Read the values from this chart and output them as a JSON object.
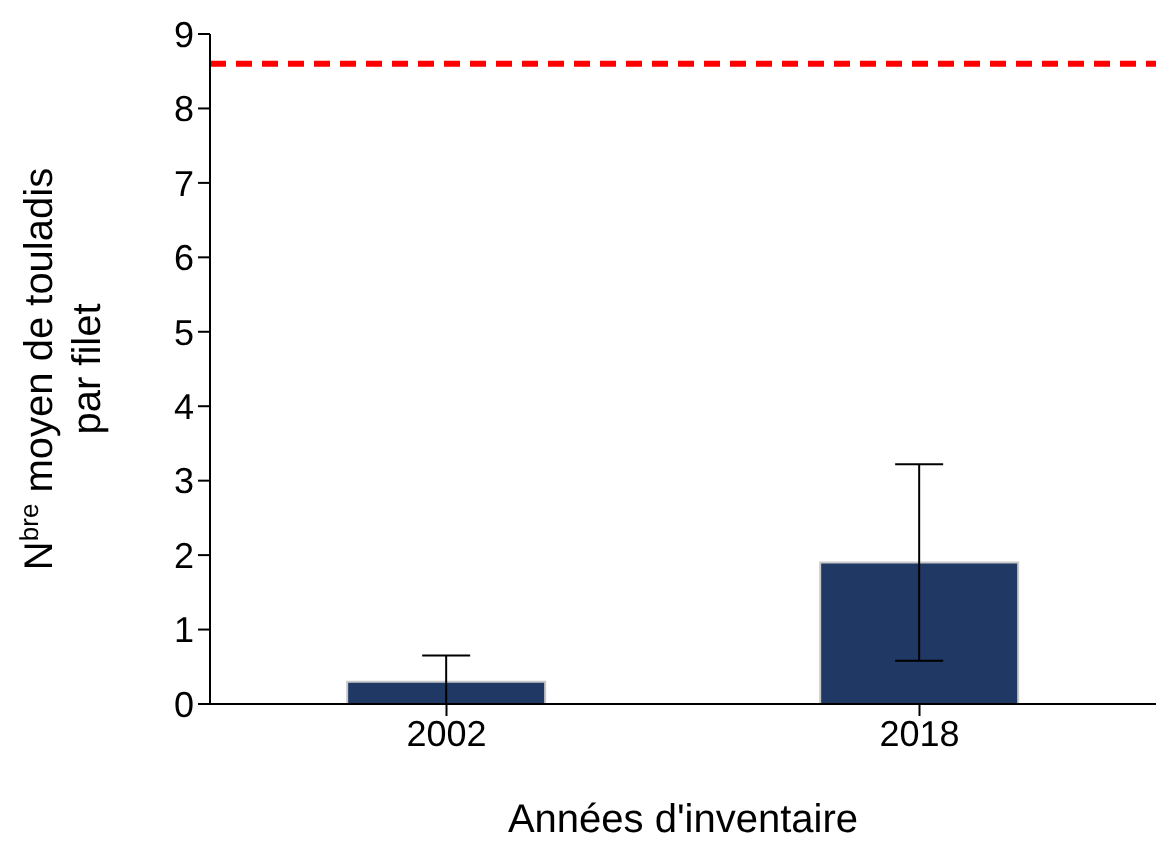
{
  "chart_data": {
    "type": "bar",
    "xlabel": "Années d'inventaire",
    "ylabel": "N$^{bre}$ moyen de touladis par filet",
    "categories": [
      "2002",
      "2018"
    ],
    "values": [
      0.3,
      1.9
    ],
    "errors": [
      [
        0,
        0.65
      ],
      [
        0.58,
        3.22
      ]
    ],
    "color": "#203864",
    "ylim": [
      0,
      9
    ],
    "yticks": [
      0,
      1,
      2,
      3,
      4,
      5,
      6,
      7,
      8,
      9
    ],
    "ref_lines": [
      {
        "axis": "y",
        "value": 8.6,
        "color": "#ff0000",
        "line_style": "dashed"
      }
    ],
    "grid": false,
    "legend": false
  }
}
